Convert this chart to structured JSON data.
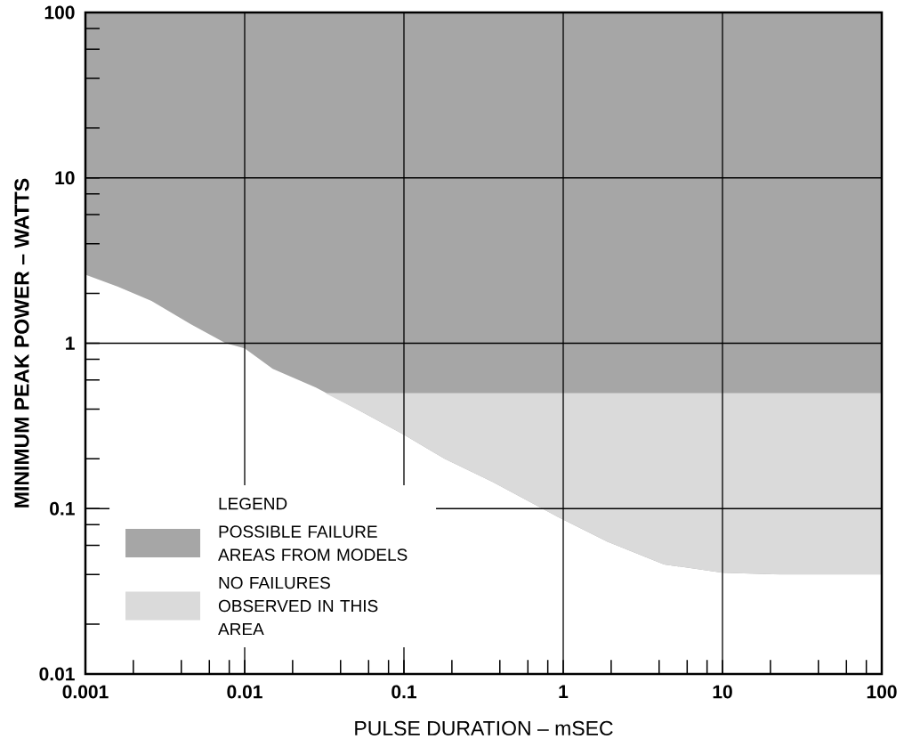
{
  "chart_data": {
    "type": "area",
    "xlabel": "PULSE DURATION – mSEC",
    "ylabel": "MINIMUM PEAK POWER – WATTS",
    "legend_title": "LEGEND",
    "log": "xy",
    "grid": true,
    "legend": "bottom left",
    "xlim": [
      0.001,
      100
    ],
    "ylim": [
      0.01,
      100
    ],
    "xticks": [
      0.001,
      {
        "value": 0.002,
        "label": null
      },
      {
        "value": 0.004,
        "label": null
      },
      {
        "value": 0.006,
        "label": null
      },
      {
        "value": 0.008,
        "label": null
      },
      0.01,
      {
        "value": 0.02,
        "label": null
      },
      {
        "value": 0.04,
        "label": null
      },
      {
        "value": 0.06,
        "label": null
      },
      {
        "value": 0.08,
        "label": null
      },
      0.1,
      {
        "value": 0.2,
        "label": null
      },
      {
        "value": 0.4,
        "label": null
      },
      {
        "value": 0.6,
        "label": null
      },
      {
        "value": 0.8,
        "label": null
      },
      1,
      {
        "value": 2,
        "label": null
      },
      {
        "value": 4,
        "label": null
      },
      {
        "value": 6,
        "label": null
      },
      {
        "value": 8,
        "label": null
      },
      10,
      {
        "value": 20,
        "label": null
      },
      {
        "value": 40,
        "label": null
      },
      {
        "value": 60,
        "label": null
      },
      {
        "value": 80,
        "label": null
      },
      100
    ],
    "yticks": [
      0.01,
      {
        "value": 0.02,
        "label": null
      },
      {
        "value": 0.04,
        "label": null
      },
      {
        "value": 0.06,
        "label": null
      },
      {
        "value": 0.08,
        "label": null
      },
      0.1,
      {
        "value": 0.2,
        "label": null
      },
      {
        "value": 0.4,
        "label": null
      },
      {
        "value": 0.6,
        "label": null
      },
      {
        "value": 0.8,
        "label": null
      },
      1,
      {
        "value": 2,
        "label": null
      },
      {
        "value": 4,
        "label": null
      },
      {
        "value": 6,
        "label": null
      },
      {
        "value": 8,
        "label": null
      },
      10,
      {
        "value": 20,
        "label": null
      },
      {
        "value": 40,
        "label": null
      },
      {
        "value": 60,
        "label": null
      },
      {
        "value": 80,
        "label": null
      },
      100
    ],
    "series": [
      {
        "name": "POSSIBLE FAILURE AREAS FROM MODELS",
        "color": "#a6a6a6",
        "x": [
          0.001,
          0.0016,
          0.0026,
          0.0046,
          0.0076,
          0.01,
          0.015,
          0.028,
          0.053,
          0.1,
          0.18,
          0.36,
          0.93,
          1.9,
          4.3,
          10,
          23,
          100
        ],
        "values": [
          null,
          null,
          null,
          null,
          null,
          null,
          null,
          null,
          null,
          null,
          null,
          null,
          null,
          null,
          null,
          null,
          null,
          null
        ],
        "lower": [
          2.6,
          2.2,
          1.8,
          1.3,
          1.0,
          0.93,
          0.7,
          0.54,
          0.39,
          0.28,
          0.2,
          0.145,
          0.089,
          0.063,
          0.046,
          0.041,
          0.04,
          0.04
        ],
        "upper": [
          100,
          100,
          100,
          100,
          100,
          100,
          100,
          100,
          100,
          100,
          100,
          100,
          100,
          100,
          100,
          100,
          100,
          100
        ]
      },
      {
        "name": "NO FAILURES OBSERVED IN THIS AREA",
        "color": "#dadada",
        "x": [
          0.032,
          0.053,
          0.1,
          0.18,
          0.36,
          0.93,
          1.9,
          4.3,
          10,
          23,
          100
        ],
        "values": [
          null,
          null,
          null,
          null,
          null,
          null,
          null,
          null,
          null,
          null,
          null
        ],
        "lower": [
          0.5,
          0.39,
          0.28,
          0.2,
          0.145,
          0.089,
          0.063,
          0.046,
          0.041,
          0.04,
          0.04
        ],
        "upper": [
          0.5,
          0.5,
          0.5,
          0.5,
          0.5,
          0.5,
          0.5,
          0.5,
          0.5,
          0.5,
          0.5
        ]
      }
    ]
  }
}
